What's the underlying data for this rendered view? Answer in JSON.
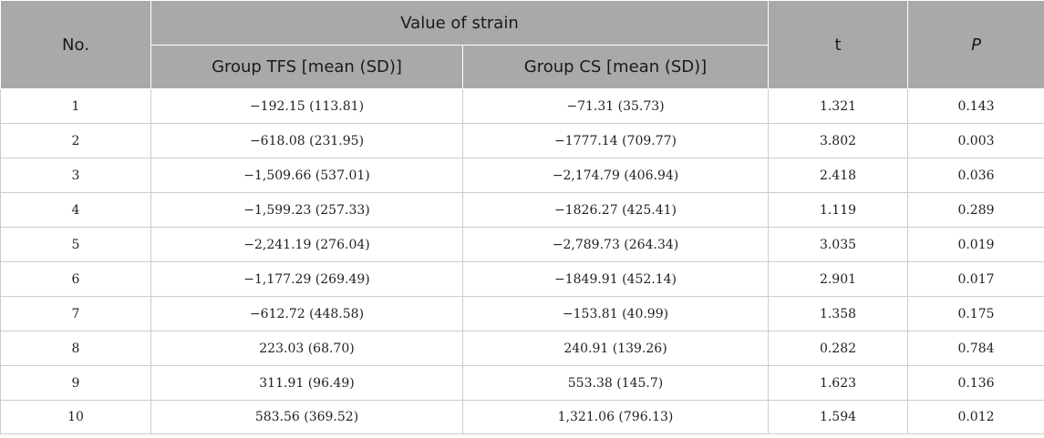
{
  "headers": {
    "no": "No.",
    "value_of_strain": "Value of strain",
    "t": "t",
    "p": "P",
    "group_tfs": "Group TFS [mean (SD)]",
    "group_cs": "Group CS [mean (SD)]"
  },
  "rows": [
    {
      "no": "1",
      "tfs": "−192.15 (113.81)",
      "cs": "−71.31 (35.73)",
      "t": "1.321",
      "p": "0.143"
    },
    {
      "no": "2",
      "tfs": "−618.08 (231.95)",
      "cs": "−1777.14 (709.77)",
      "t": "3.802",
      "p": "0.003"
    },
    {
      "no": "3",
      "tfs": "−1,509.66 (537.01)",
      "cs": "−2,174.79 (406.94)",
      "t": "2.418",
      "p": "0.036"
    },
    {
      "no": "4",
      "tfs": "−1,599.23 (257.33)",
      "cs": "−1826.27 (425.41)",
      "t": "1.119",
      "p": "0.289"
    },
    {
      "no": "5",
      "tfs": "−2,241.19 (276.04)",
      "cs": "−2,789.73 (264.34)",
      "t": "3.035",
      "p": "0.019"
    },
    {
      "no": "6",
      "tfs": "−1,177.29 (269.49)",
      "cs": "−1849.91 (452.14)",
      "t": "2.901",
      "p": "0.017"
    },
    {
      "no": "7",
      "tfs": "−612.72 (448.58)",
      "cs": "−153.81 (40.99)",
      "t": "1.358",
      "p": "0.175"
    },
    {
      "no": "8",
      "tfs": "223.03 (68.70)",
      "cs": "240.91 (139.26)",
      "t": "0.282",
      "p": "0.784"
    },
    {
      "no": "9",
      "tfs": "311.91 (96.49)",
      "cs": "553.38 (145.7)",
      "t": "1.623",
      "p": "0.136"
    },
    {
      "no": "10",
      "tfs": "583.56 (369.52)",
      "cs": "1,321.06 (796.13)",
      "t": "1.594",
      "p": "0.012"
    }
  ]
}
